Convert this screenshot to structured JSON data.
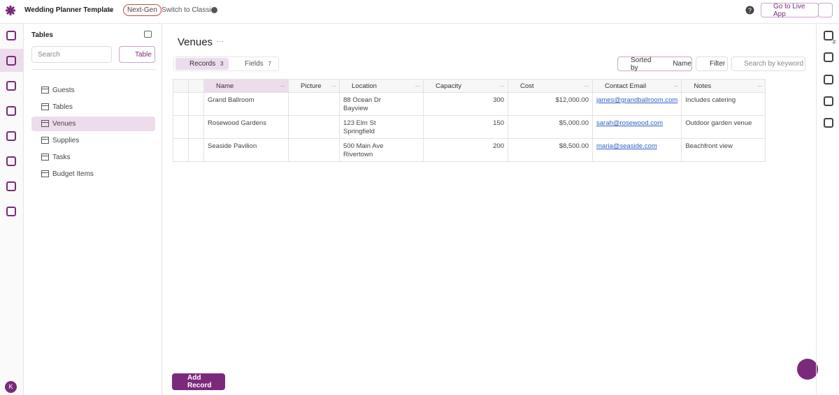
{
  "header": {
    "app_name": "Wedding Planner Template",
    "badge": "Next-Gen",
    "switch_label": "Switch to Classic",
    "live_app": "Go to Live App"
  },
  "sidebar": {
    "title": "Tables",
    "search_placeholder": "Search",
    "add_button": "Table",
    "tables": [
      "Guests",
      "Tables",
      "Venues",
      "Supplies",
      "Tasks",
      "Budget Items"
    ],
    "user_initial": "K"
  },
  "view": {
    "title": "Venues",
    "records_label": "Records",
    "records_count": 3,
    "fields_label": "Fields",
    "fields_count": 7,
    "sorted_by": "Sorted by",
    "sort_field": "Name",
    "filter": "Filter",
    "search_placeholder": "Search by keyword",
    "add_record": "Add Record"
  },
  "right_rail": {
    "badge": 2
  },
  "table": {
    "columns": [
      "Name",
      "Picture",
      "Location",
      "Capacity",
      "Cost",
      "Contact Email",
      "Notes"
    ],
    "rows": [
      [
        "Grand Ballroom",
        "",
        "88 Ocean Dr\nBayview",
        300,
        "$12,000.00",
        "james@grandballroom.com",
        "Includes catering"
      ],
      [
        "Rosewood Gardens",
        "",
        "123 Elm St\nSpringfield",
        150,
        "$5,000.00",
        "sarah@rosewood.com",
        "Outdoor garden venue"
      ],
      [
        "Seaside Pavilion",
        "",
        "500 Main Ave\nRivertown",
        200,
        "$8,500.00",
        "maria@seaside.com",
        "Beachfront view"
      ]
    ]
  }
}
